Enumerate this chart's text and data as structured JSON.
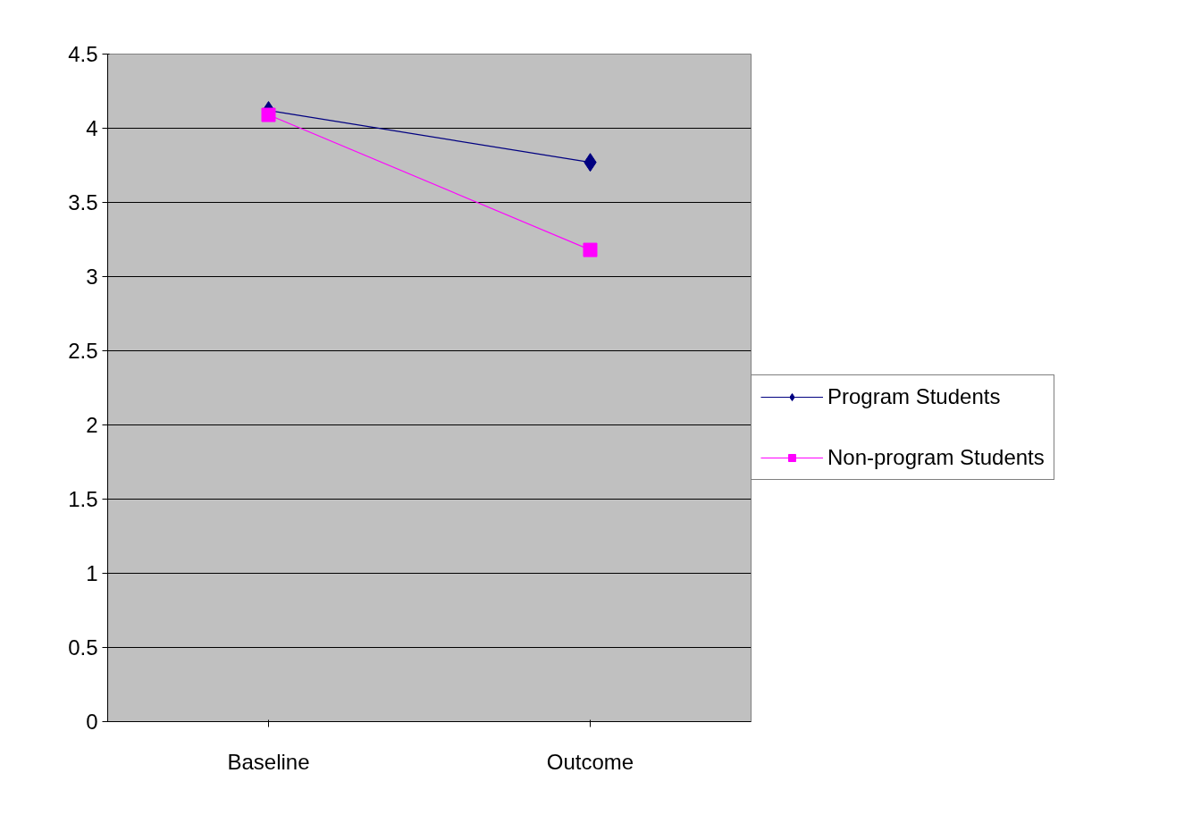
{
  "chart_data": {
    "type": "line",
    "categories": [
      "Baseline",
      "Outcome"
    ],
    "series": [
      {
        "name": "Program Students",
        "color": "#000080",
        "values": [
          4.12,
          3.77
        ],
        "marker": "diamond"
      },
      {
        "name": "Non-program Students",
        "color": "#ff00ff",
        "values": [
          4.09,
          3.18
        ],
        "marker": "square"
      }
    ],
    "ylim": [
      0,
      4.5
    ],
    "yticks": [
      0,
      0.5,
      1,
      1.5,
      2,
      2.5,
      3,
      3.5,
      4,
      4.5
    ],
    "grid": "y",
    "legend": "right",
    "line_style": "solid"
  }
}
